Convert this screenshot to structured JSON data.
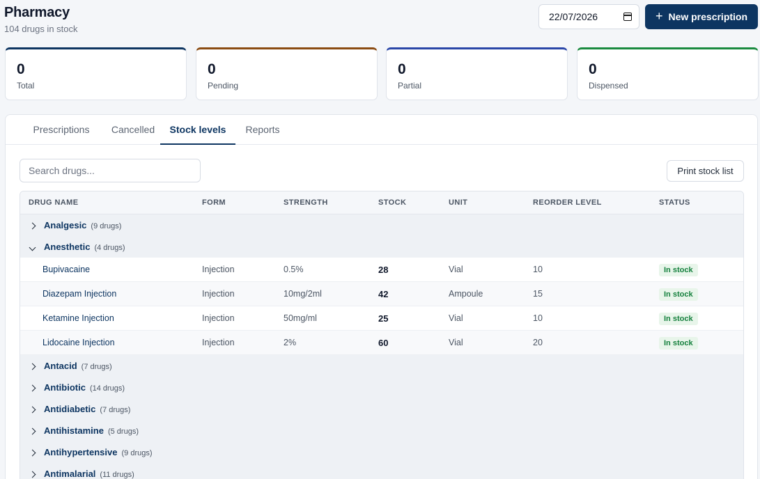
{
  "header": {
    "title": "Pharmacy",
    "subtitle": "104 drugs in stock",
    "date_value": "22/07/2026",
    "new_button_label": "New prescription"
  },
  "stats": [
    {
      "value": "0",
      "label": "Total",
      "color": "#0d3561"
    },
    {
      "value": "0",
      "label": "Pending",
      "color": "#8a4b12"
    },
    {
      "value": "0",
      "label": "Partial",
      "color": "#2a46a8"
    },
    {
      "value": "0",
      "label": "Dispensed",
      "color": "#1a8a3f"
    }
  ],
  "tabs": [
    {
      "label": "Prescriptions"
    },
    {
      "label": "Cancelled"
    },
    {
      "label": "Stock levels"
    },
    {
      "label": "Reports"
    }
  ],
  "toolbar": {
    "search_placeholder": "Search drugs...",
    "print_label": "Print stock list"
  },
  "table": {
    "columns": [
      "Drug name",
      "Form",
      "Strength",
      "Stock",
      "Unit",
      "Reorder level",
      "Status"
    ],
    "groups": [
      {
        "name": "Analgesic",
        "count": "(9 drugs)",
        "expanded": false,
        "rows": []
      },
      {
        "name": "Anesthetic",
        "count": "(4 drugs)",
        "expanded": true,
        "rows": [
          {
            "name": "Bupivacaine",
            "form": "Injection",
            "strength": "0.5%",
            "stock": "28",
            "unit": "Vial",
            "reorder": "10",
            "status": "In stock"
          },
          {
            "name": "Diazepam Injection",
            "form": "Injection",
            "strength": "10mg/2ml",
            "stock": "42",
            "unit": "Ampoule",
            "reorder": "15",
            "status": "In stock"
          },
          {
            "name": "Ketamine Injection",
            "form": "Injection",
            "strength": "50mg/ml",
            "stock": "25",
            "unit": "Vial",
            "reorder": "10",
            "status": "In stock"
          },
          {
            "name": "Lidocaine Injection",
            "form": "Injection",
            "strength": "2%",
            "stock": "60",
            "unit": "Vial",
            "reorder": "20",
            "status": "In stock"
          }
        ]
      },
      {
        "name": "Antacid",
        "count": "(7 drugs)",
        "expanded": false,
        "rows": []
      },
      {
        "name": "Antibiotic",
        "count": "(14 drugs)",
        "expanded": false,
        "rows": []
      },
      {
        "name": "Antidiabetic",
        "count": "(7 drugs)",
        "expanded": false,
        "rows": []
      },
      {
        "name": "Antihistamine",
        "count": "(5 drugs)",
        "expanded": false,
        "rows": []
      },
      {
        "name": "Antihypertensive",
        "count": "(9 drugs)",
        "expanded": false,
        "rows": []
      },
      {
        "name": "Antimalarial",
        "count": "(11 drugs)",
        "expanded": false,
        "rows": []
      }
    ]
  }
}
